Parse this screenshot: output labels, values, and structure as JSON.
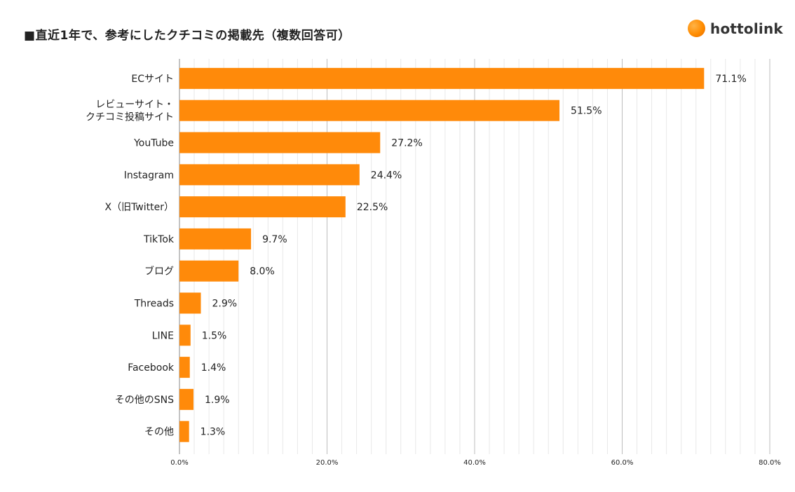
{
  "title": "■直近1年で、参考にしたクチコミの掲載先（複数回答可）",
  "logo": {
    "text": "hottolink"
  },
  "colors": {
    "bar": "#FF8A0A",
    "grid_minor": "#e8e8e8",
    "grid_major": "#bdbdbd",
    "axis": "#888888"
  },
  "chart_data": {
    "type": "bar",
    "orientation": "horizontal",
    "categories": [
      [
        "ECサイト"
      ],
      [
        "レビューサイト・",
        "クチコミ投稿サイト"
      ],
      [
        "YouTube"
      ],
      [
        "Instagram"
      ],
      [
        "X（旧Twitter）"
      ],
      [
        "TikTok"
      ],
      [
        "ブログ"
      ],
      [
        "Threads"
      ],
      [
        "LINE"
      ],
      [
        "Facebook"
      ],
      [
        "その他のSNS"
      ],
      [
        "その他"
      ]
    ],
    "values": [
      71.1,
      51.5,
      27.2,
      24.4,
      22.5,
      9.7,
      8.0,
      2.9,
      1.5,
      1.4,
      1.9,
      1.3
    ],
    "value_labels": [
      "71.1%",
      "51.5%",
      "27.2%",
      "24.4%",
      "22.5%",
      "9.7%",
      "8.0%",
      "2.9%",
      "1.5%",
      "1.4%",
      "1.9%",
      "1.3%"
    ],
    "xlim": [
      0,
      80
    ],
    "xticks": [
      0,
      20,
      40,
      60,
      80
    ],
    "xtick_labels": [
      "0.0%",
      "20.0%",
      "40.0%",
      "60.0%",
      "80.0%"
    ],
    "minor_grid_step": 2,
    "grid": true,
    "legend": "none"
  }
}
